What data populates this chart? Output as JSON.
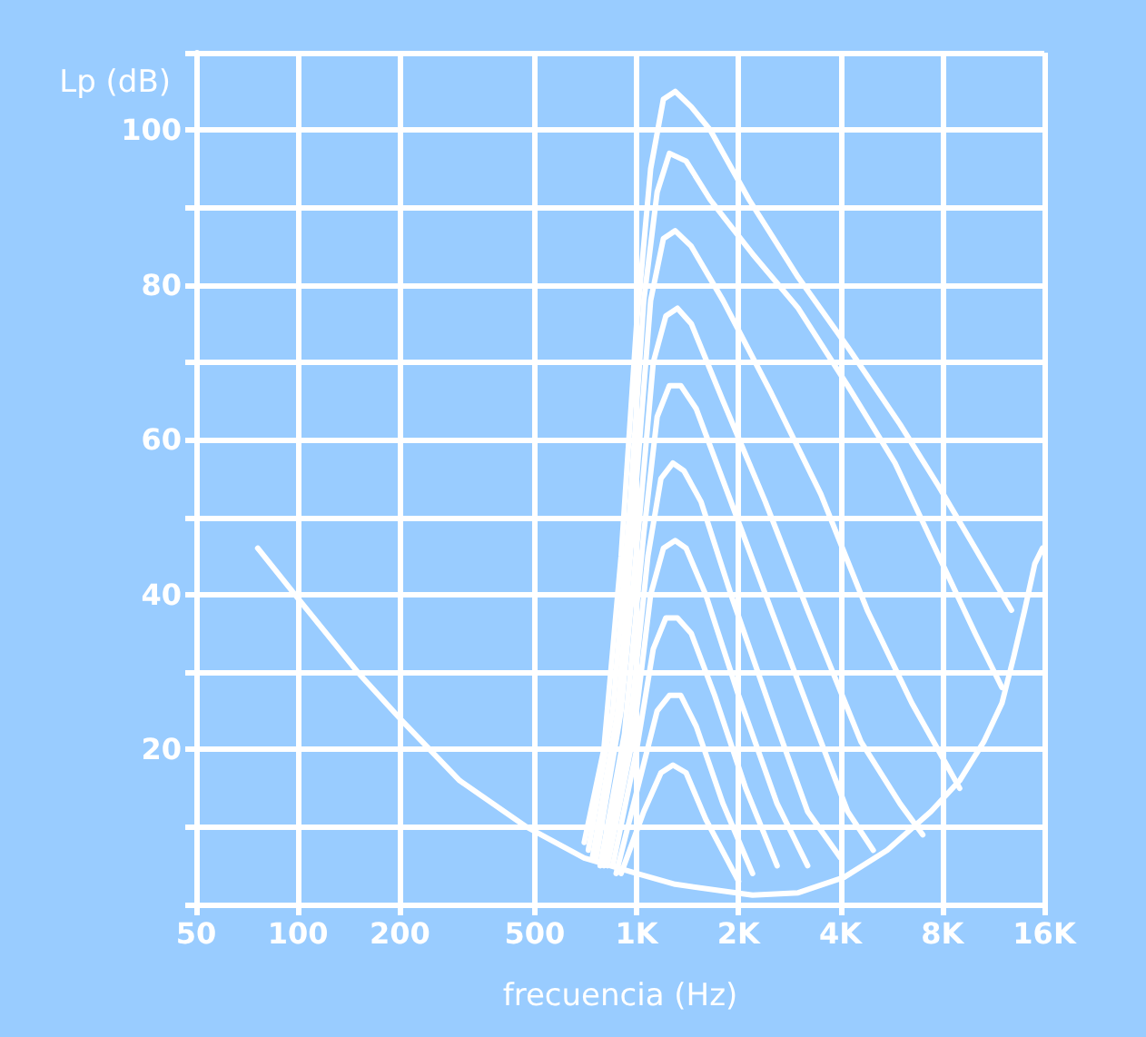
{
  "chart_data": {
    "type": "line",
    "xlabel": "frecuencia (Hz)",
    "ylabel": "Lp (dB)",
    "log": "x",
    "grid": true,
    "marker": "none",
    "line_style": "solid",
    "xlim": [
      50,
      16000
    ],
    "xticks": [
      50,
      100,
      200,
      500,
      {
        "value": 1000,
        "label": "1K"
      },
      {
        "value": 2000,
        "label": "2K"
      },
      {
        "value": 4000,
        "label": "4K"
      },
      {
        "value": 8000,
        "label": "8K"
      },
      {
        "value": 16000,
        "label": "16K"
      }
    ],
    "ylim": [
      0,
      110
    ],
    "yticks": [
      {
        "value": 0,
        "label": null
      },
      {
        "value": 10,
        "label": null
      },
      20,
      {
        "value": 30,
        "label": null
      },
      40,
      {
        "value": 50,
        "label": null
      },
      60,
      {
        "value": 70,
        "label": null
      },
      80,
      {
        "value": 90,
        "label": null
      },
      100,
      {
        "value": 110,
        "label": null
      }
    ],
    "series": [
      {
        "color": "#ffffff",
        "x": [
          76,
          100,
          150,
          200,
          300,
          473,
          700,
          1000,
          1300,
          2200,
          3000,
          4100,
          5500,
          7400,
          9000,
          10600,
          12000,
          13000,
          14000,
          15000,
          15800
        ],
        "values": [
          46,
          39.5,
          30,
          24,
          16,
          10,
          6,
          4,
          2.6,
          1.2,
          1.5,
          3.5,
          7,
          12,
          16,
          21,
          26,
          32,
          38,
          44,
          46
        ]
      },
      {
        "color": "#ffffff",
        "x": [
          700,
          800,
          900,
          1000,
          1100,
          1200,
          1300,
          1450,
          1650,
          2150,
          3000,
          4200,
          6000,
          7800,
          10000,
          12800
        ],
        "values": [
          8,
          20,
          45,
          75,
          95,
          104,
          105,
          103,
          100,
          91,
          81,
          72,
          62,
          54,
          46,
          38
        ]
      },
      {
        "color": "#ffffff",
        "x": [
          720,
          850,
          950,
          1050,
          1150,
          1250,
          1400,
          1650,
          2200,
          3000,
          4200,
          5800,
          8000,
          10000,
          12000
        ],
        "values": [
          7,
          25,
          50,
          78,
          92,
          97,
          96,
          91,
          84,
          77,
          67,
          57,
          44,
          35,
          28
        ]
      },
      {
        "color": "#ffffff",
        "x": [
          740,
          880,
          1000,
          1100,
          1200,
          1300,
          1450,
          1800,
          2500,
          3500,
          4800,
          6500,
          8000,
          9000
        ],
        "values": [
          6,
          25,
          55,
          78,
          86,
          87,
          85,
          78,
          66,
          53,
          38,
          26,
          19,
          15
        ]
      },
      {
        "color": "#ffffff",
        "x": [
          760,
          900,
          1020,
          1120,
          1220,
          1320,
          1450,
          1800,
          2400,
          3200,
          4600,
          6000,
          7000
        ],
        "values": [
          6,
          25,
          50,
          70,
          76,
          77,
          75,
          65,
          52,
          38,
          21,
          13,
          9
        ]
      },
      {
        "color": "#ffffff",
        "x": [
          780,
          920,
          1050,
          1150,
          1250,
          1350,
          1500,
          1900,
          2500,
          3300,
          4200,
          5000
        ],
        "values": [
          5,
          22,
          48,
          63,
          67,
          67,
          64,
          52,
          38,
          24,
          12,
          7
        ]
      },
      {
        "color": "#ffffff",
        "x": [
          800,
          950,
          1080,
          1180,
          1280,
          1380,
          1550,
          1900,
          2500,
          3200,
          4000
        ],
        "values": [
          5,
          22,
          45,
          55,
          57,
          56,
          52,
          40,
          25,
          12,
          6
        ]
      },
      {
        "color": "#ffffff",
        "x": [
          820,
          980,
          1100,
          1200,
          1300,
          1400,
          1600,
          2000,
          2600,
          3200
        ],
        "values": [
          5,
          22,
          40,
          46,
          47,
          46,
          40,
          27,
          13,
          5
        ]
      },
      {
        "color": "#ffffff",
        "x": [
          850,
          1000,
          1120,
          1220,
          1320,
          1450,
          1700,
          2100,
          2600
        ],
        "values": [
          5,
          20,
          33,
          37,
          37,
          35,
          27,
          15,
          5
        ]
      },
      {
        "color": "#ffffff",
        "x": [
          870,
          1020,
          1150,
          1250,
          1350,
          1500,
          1800,
          2200
        ],
        "values": [
          4,
          16,
          25,
          27,
          27,
          23,
          13,
          4
        ]
      },
      {
        "color": "#ffffff",
        "x": [
          900,
          1050,
          1180,
          1280,
          1400,
          1600,
          2000
        ],
        "values": [
          4,
          12,
          17,
          18,
          17,
          11,
          3
        ]
      }
    ]
  }
}
